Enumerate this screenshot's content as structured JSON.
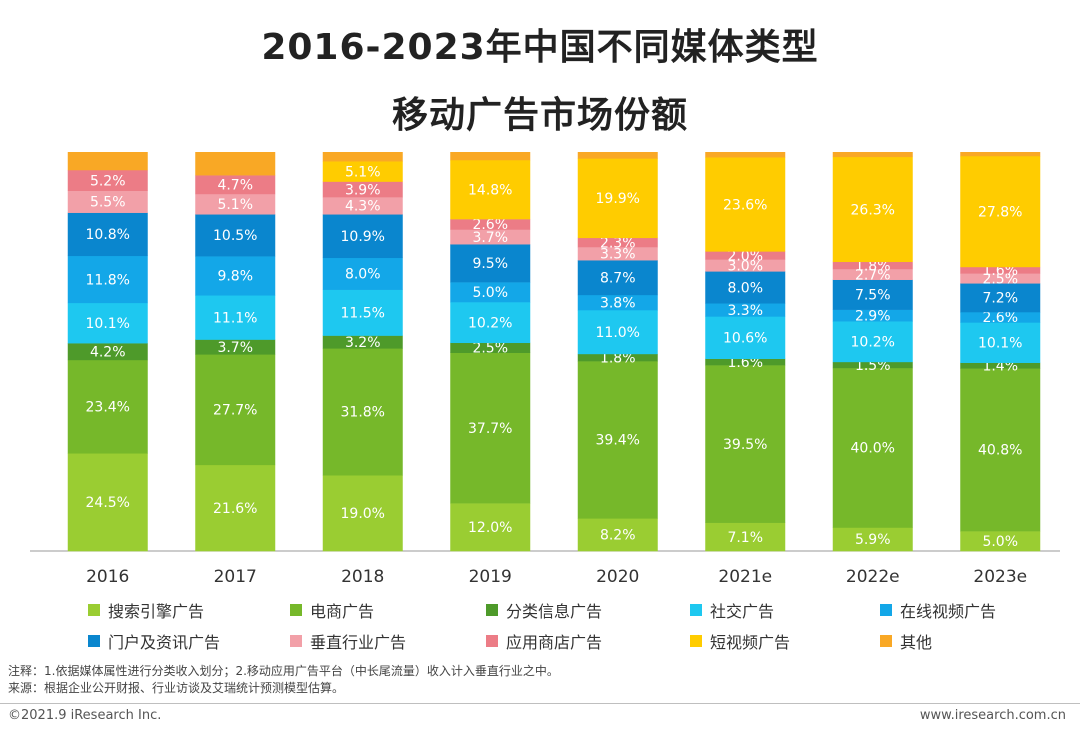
{
  "title_line1": "2016-2023年中国不同媒体类型",
  "title_line2": "移动广告市场份额",
  "note": "注释：1.依据媒体属性进行分类收入划分；2.移动应用广告平台（中长尾流量）收入计入垂直行业之中。",
  "source": "来源：根据企业公开财报、行业访谈及艾瑞统计预测模型估算。",
  "copyright": "©2021.9 iResearch Inc.",
  "website": "www.iresearch.com.cn",
  "chart_data": {
    "type": "bar",
    "stacked": true,
    "unit": "%",
    "categories": [
      "2016",
      "2017",
      "2018",
      "2019",
      "2020",
      "2021e",
      "2022e",
      "2023e"
    ],
    "ylim": [
      0,
      100
    ],
    "legend_position": "bottom",
    "series": [
      {
        "name": "搜索引擎广告",
        "color": "#9ACD32",
        "values": [
          24.5,
          21.6,
          19.0,
          12.0,
          8.2,
          7.1,
          5.9,
          5.0
        ]
      },
      {
        "name": "电商广告",
        "color": "#76B82A",
        "values": [
          23.4,
          27.7,
          31.8,
          37.7,
          39.4,
          39.5,
          40.0,
          40.8
        ]
      },
      {
        "name": "分类信息广告",
        "color": "#4E9A2A",
        "values": [
          4.2,
          3.7,
          3.2,
          2.5,
          1.8,
          1.6,
          1.5,
          1.4
        ]
      },
      {
        "name": "社交广告",
        "color": "#1EC8F0",
        "values": [
          10.1,
          11.1,
          11.5,
          10.2,
          11.0,
          10.6,
          10.2,
          10.1
        ]
      },
      {
        "name": "在线视频广告",
        "color": "#13A7E8",
        "values": [
          11.8,
          9.8,
          8.0,
          5.0,
          3.8,
          3.3,
          2.9,
          2.6
        ]
      },
      {
        "name": "门户及资讯广告",
        "color": "#0A86CE",
        "values": [
          10.8,
          10.5,
          10.9,
          9.5,
          8.7,
          8.0,
          7.5,
          7.2
        ]
      },
      {
        "name": "垂直行业广告",
        "color": "#F2A0A8",
        "values": [
          5.5,
          5.1,
          4.3,
          3.7,
          3.3,
          3.0,
          2.7,
          2.5
        ]
      },
      {
        "name": "应用商店广告",
        "color": "#EC7C86",
        "values": [
          5.2,
          4.7,
          3.9,
          2.6,
          2.3,
          2.0,
          1.8,
          1.6
        ]
      },
      {
        "name": "短视频广告",
        "color": "#FFCC00",
        "values": [
          0,
          0,
          5.1,
          14.8,
          19.9,
          23.6,
          26.3,
          27.8
        ]
      },
      {
        "name": "其他",
        "color": "#F9A825",
        "values": [
          4.5,
          5.8,
          2.3,
          2.0,
          1.6,
          1.3,
          1.2,
          1.0
        ]
      }
    ],
    "labels": {
      "搜索引擎广告": [
        "24.5%",
        "21.6%",
        "19.0%",
        "12.0%",
        "8.2%",
        "7.1%",
        "5.9%",
        "5.0%"
      ],
      "电商广告": [
        "23.4%",
        "27.7%",
        "31.8%",
        "37.7%",
        "39.4%",
        "39.5%",
        "40.0%",
        "40.8%"
      ],
      "分类信息广告": [
        "4.2%",
        "3.7%",
        "3.2%",
        "2.5%",
        "1.8%",
        "1.6%",
        "1.5%",
        "1.4%"
      ],
      "社交广告": [
        "10.1%",
        "11.1%",
        "11.5%",
        "10.2%",
        "11.0%",
        "10.6%",
        "10.2%",
        "10.1%"
      ],
      "在线视频广告": [
        "11.8%",
        "9.8%",
        "8.0%",
        "5.0%",
        "3.8%",
        "3.3%",
        "2.9%",
        "2.6%"
      ],
      "门户及资讯广告": [
        "10.8%",
        "10.5%",
        "10.9%",
        "9.5%",
        "8.7%",
        "8.0%",
        "7.5%",
        "7.2%"
      ],
      "垂直行业广告": [
        "5.5%",
        "5.1%",
        "4.3%",
        "3.7%",
        "3.3%",
        "3.0%",
        "2.7%",
        "2.5%"
      ],
      "应用商店广告": [
        "5.2%",
        "4.7%",
        "3.9%",
        "2.6%",
        "2.3%",
        "2.0%",
        "1.8%",
        "1.6%"
      ],
      "短视频广告": [
        "",
        "",
        "5.1%",
        "14.8%",
        "19.9%",
        "23.6%",
        "26.3%",
        "27.8%"
      ],
      "其他": [
        "",
        "",
        "",
        "",
        "",
        "",
        "",
        ""
      ]
    }
  }
}
